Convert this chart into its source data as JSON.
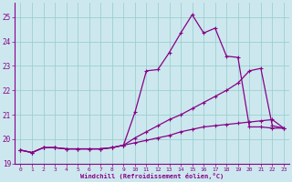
{
  "xlabel": "Windchill (Refroidissement éolien,°C)",
  "bg_color": "#cce8ee",
  "grid_color": "#9dcfcf",
  "line_color": "#880088",
  "xlim": [
    -0.5,
    23.5
  ],
  "ylim": [
    19.0,
    25.6
  ],
  "yticks": [
    19,
    20,
    21,
    22,
    23,
    24,
    25
  ],
  "xticks": [
    0,
    1,
    2,
    3,
    4,
    5,
    6,
    7,
    8,
    9,
    10,
    11,
    12,
    13,
    14,
    15,
    16,
    17,
    18,
    19,
    20,
    21,
    22,
    23
  ],
  "line1_x": [
    0,
    1,
    2,
    3,
    4,
    5,
    6,
    7,
    8,
    9,
    10,
    11,
    12,
    13,
    14,
    15,
    16,
    17,
    18,
    19,
    20,
    21,
    22,
    23
  ],
  "line1_y": [
    19.55,
    19.45,
    19.65,
    19.65,
    19.6,
    19.6,
    19.6,
    19.6,
    19.65,
    19.75,
    21.1,
    22.8,
    22.85,
    23.55,
    24.35,
    25.1,
    24.35,
    24.55,
    23.4,
    23.35,
    20.5,
    20.5,
    20.45,
    20.45
  ],
  "line2_x": [
    0,
    1,
    2,
    3,
    4,
    5,
    6,
    7,
    8,
    9,
    10,
    11,
    12,
    13,
    14,
    15,
    16,
    17,
    18,
    19,
    20,
    21,
    22,
    23
  ],
  "line2_y": [
    19.55,
    19.45,
    19.65,
    19.65,
    19.6,
    19.6,
    19.6,
    19.6,
    19.65,
    19.75,
    20.05,
    20.3,
    20.55,
    20.8,
    21.0,
    21.25,
    21.5,
    21.75,
    22.0,
    22.3,
    22.8,
    22.9,
    20.55,
    20.45
  ],
  "line3_x": [
    0,
    1,
    2,
    3,
    4,
    5,
    6,
    7,
    8,
    9,
    10,
    11,
    12,
    13,
    14,
    15,
    16,
    17,
    18,
    19,
    20,
    21,
    22,
    23
  ],
  "line3_y": [
    19.55,
    19.45,
    19.65,
    19.65,
    19.6,
    19.6,
    19.6,
    19.6,
    19.65,
    19.75,
    19.85,
    19.95,
    20.05,
    20.15,
    20.3,
    20.4,
    20.5,
    20.55,
    20.6,
    20.65,
    20.7,
    20.75,
    20.8,
    20.45
  ]
}
